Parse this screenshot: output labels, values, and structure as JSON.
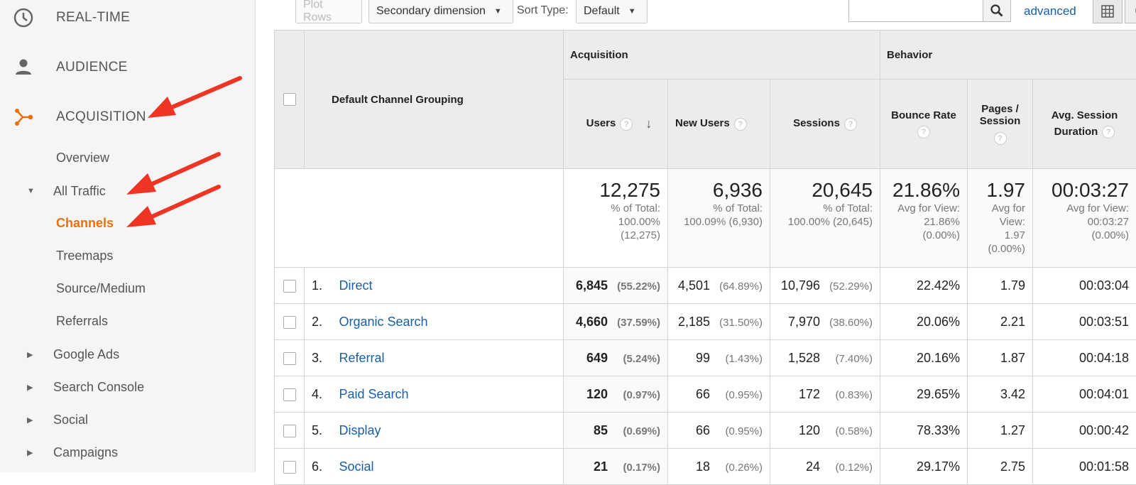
{
  "sidebar": {
    "realtime": "REAL-TIME",
    "audience": "AUDIENCE",
    "acquisition": "ACQUISITION",
    "overview": "Overview",
    "all_traffic": "All Traffic",
    "channels": "Channels",
    "treemaps": "Treemaps",
    "source_medium": "Source/Medium",
    "referrals": "Referrals",
    "google_ads": "Google Ads",
    "search_console": "Search Console",
    "social": "Social",
    "campaigns": "Campaigns",
    "accent_color": "#e8710a"
  },
  "toolbar": {
    "plot_rows": "Plot Rows",
    "secondary_dimension": "Secondary dimension",
    "sort_type_label": "Sort Type:",
    "sort_type_value": "Default",
    "search_value": "",
    "advanced": "advanced"
  },
  "table": {
    "dimension_header": "Default Channel Grouping",
    "acquisition_header": "Acquisition",
    "behavior_header": "Behavior",
    "columns": {
      "users": "Users",
      "new_users": "New Users",
      "sessions": "Sessions",
      "bounce_rate": "Bounce Rate",
      "pages_session_1": "Pages /",
      "pages_session_2": "Session",
      "avg_duration_1": "Avg. Session",
      "avg_duration_2": "Duration"
    },
    "totals": {
      "users": "12,275",
      "users_sub": [
        "% of Total:",
        "100.00%",
        "(12,275)"
      ],
      "new_users": "6,936",
      "new_users_sub": [
        "% of Total:",
        "100.09% (6,930)"
      ],
      "sessions": "20,645",
      "sessions_sub": [
        "% of Total:",
        "100.00% (20,645)"
      ],
      "bounce_rate": "21.86%",
      "bounce_rate_sub": [
        "Avg for View:",
        "21.86%",
        "(0.00%)"
      ],
      "pages_session": "1.97",
      "pages_session_sub": [
        "Avg for",
        "View:",
        "1.97",
        "(0.00%)"
      ],
      "avg_duration": "00:03:27",
      "avg_duration_sub": [
        "Avg for View:",
        "00:03:27",
        "(0.00%)"
      ]
    },
    "rows": [
      {
        "idx": "1.",
        "channel": "Direct",
        "users": "6,845",
        "users_pct": "(55.22%)",
        "new_users": "4,501",
        "new_users_pct": "(64.89%)",
        "sessions": "10,796",
        "sessions_pct": "(52.29%)",
        "bounce": "22.42%",
        "pages": "1.79",
        "duration": "00:03:04"
      },
      {
        "idx": "2.",
        "channel": "Organic Search",
        "users": "4,660",
        "users_pct": "(37.59%)",
        "new_users": "2,185",
        "new_users_pct": "(31.50%)",
        "sessions": "7,970",
        "sessions_pct": "(38.60%)",
        "bounce": "20.06%",
        "pages": "2.21",
        "duration": "00:03:51"
      },
      {
        "idx": "3.",
        "channel": "Referral",
        "users": "649",
        "users_pct": "(5.24%)",
        "new_users": "99",
        "new_users_pct": "(1.43%)",
        "sessions": "1,528",
        "sessions_pct": "(7.40%)",
        "bounce": "20.16%",
        "pages": "1.87",
        "duration": "00:04:18"
      },
      {
        "idx": "4.",
        "channel": "Paid Search",
        "users": "120",
        "users_pct": "(0.97%)",
        "new_users": "66",
        "new_users_pct": "(0.95%)",
        "sessions": "172",
        "sessions_pct": "(0.83%)",
        "bounce": "29.65%",
        "pages": "3.42",
        "duration": "00:04:01"
      },
      {
        "idx": "5.",
        "channel": "Display",
        "users": "85",
        "users_pct": "(0.69%)",
        "new_users": "66",
        "new_users_pct": "(0.95%)",
        "sessions": "120",
        "sessions_pct": "(0.58%)",
        "bounce": "78.33%",
        "pages": "1.27",
        "duration": "00:00:42"
      },
      {
        "idx": "6.",
        "channel": "Social",
        "users": "21",
        "users_pct": "(0.17%)",
        "new_users": "18",
        "new_users_pct": "(0.26%)",
        "sessions": "24",
        "sessions_pct": "(0.12%)",
        "bounce": "29.17%",
        "pages": "2.75",
        "duration": "00:01:58"
      }
    ]
  },
  "annotation_color": "#ee3524",
  "link_color": "#1a5fa6"
}
